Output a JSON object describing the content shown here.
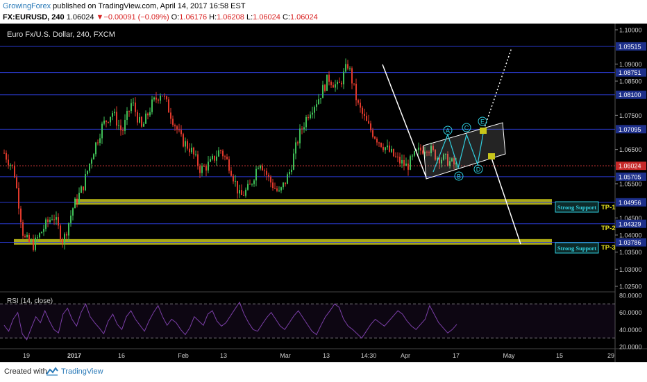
{
  "header": {
    "author": "GrowingForex",
    "published_text": "published on TradingView.com, April 14, 2017 16:58 EST",
    "symbol": "FX:EURUSD, 240",
    "last": "1.06024",
    "change": "−0.00091 (−0.09%)",
    "o_label": "O:",
    "o": "1.06176",
    "h_label": "H:",
    "h": "1.06208",
    "l_label": "L:",
    "l": "1.06024",
    "c_label": "C:",
    "c": "1.06024"
  },
  "chart_title": "Euro Fx/U.S. Dollar, 240, FXCM",
  "footer": {
    "created_with": "Created with",
    "brand": "TradingView"
  },
  "colors": {
    "background": "#000000",
    "candle_up": "#3fbf57",
    "candle_down": "#e0392b",
    "level_line": "#2b3bd4",
    "support_zone": "#c8c61a",
    "last_price_line": "#d83a3a",
    "rsi_line": "#7b3fa8",
    "wave_cyan": "#30d0e0",
    "tp_label": "#e6e020",
    "price_label_bg": "#1d2f8a"
  },
  "chart_data": [
    {
      "type": "candlestick",
      "title": "Euro Fx/U.S. Dollar, 240, FXCM",
      "ylim": [
        1.025,
        1.101
      ],
      "y_ticks": [
        "1.10000",
        "1.09000",
        "1.08500",
        "1.07500",
        "1.06500",
        "1.05500",
        "1.04500",
        "1.04000",
        "1.03500",
        "1.03000",
        "1.02500"
      ],
      "x_ticks": [
        "19",
        "2017",
        "16",
        "Feb",
        "13",
        "Mar",
        "13",
        "14:30",
        "Apr",
        "17",
        "May",
        "15",
        "29"
      ],
      "price_path": [
        1.064,
        1.059,
        1.039,
        1.037,
        1.042,
        1.046,
        1.038,
        1.048,
        1.054,
        1.064,
        1.072,
        1.076,
        1.07,
        1.079,
        1.071,
        1.078,
        1.082,
        1.075,
        1.068,
        1.065,
        1.059,
        1.061,
        1.065,
        1.06,
        1.051,
        1.054,
        1.062,
        1.056,
        1.052,
        1.058,
        1.069,
        1.076,
        1.08,
        1.086,
        1.083,
        1.09,
        1.078,
        1.072,
        1.068,
        1.065,
        1.062,
        1.06,
        1.064,
        1.066,
        1.063,
        1.062,
        1.0602
      ],
      "horizontal_levels": [
        {
          "label": "1.09515",
          "value": 1.09515
        },
        {
          "label": "1.08751",
          "value": 1.08751
        },
        {
          "label": "1.08100",
          "value": 1.081
        },
        {
          "label": "1.07095",
          "value": 1.07095
        },
        {
          "label": "1.05705",
          "value": 1.05705
        },
        {
          "label": "1.04956",
          "value": 1.04956
        },
        {
          "label": "1.04329",
          "value": 1.04329
        },
        {
          "label": "1.03786",
          "value": 1.03786
        }
      ],
      "last_price": {
        "label": "1.06024",
        "value": 1.06024
      },
      "support_zones": [
        {
          "value": 1.0497,
          "label": "Strong Support",
          "tp": "TP-1"
        },
        {
          "value": 1.038,
          "label": "Strong Support",
          "tp": "TP-3"
        }
      ],
      "tp_labels": [
        "TP-1",
        "TP-2",
        "TP-3"
      ],
      "wave_labels": [
        "A",
        "B",
        "C",
        "D",
        "E"
      ]
    },
    {
      "type": "line",
      "title": "RSI (14, close)",
      "ylim": [
        20,
        80
      ],
      "y_ticks": [
        "80.0000",
        "60.0000",
        "40.0000",
        "20.0000"
      ],
      "bands": [
        70,
        30
      ],
      "values": [
        45,
        38,
        52,
        60,
        35,
        28,
        42,
        55,
        48,
        62,
        50,
        40,
        36,
        58,
        65,
        52,
        44,
        60,
        70,
        55,
        48,
        42,
        35,
        50,
        58,
        46,
        40,
        55,
        62,
        52,
        45,
        38,
        50,
        60,
        68,
        55,
        45,
        52,
        48,
        40,
        34,
        42,
        55,
        50,
        45,
        58,
        62,
        50,
        44,
        48,
        56,
        64,
        72,
        58,
        48,
        40,
        38,
        46,
        54,
        60,
        52,
        44,
        40,
        48,
        56,
        62,
        54,
        46,
        38,
        34,
        45,
        55,
        62,
        70,
        66,
        52,
        44,
        40,
        35,
        30,
        38,
        46,
        52,
        48,
        44,
        50,
        56,
        62,
        58,
        50,
        44,
        40,
        46,
        52,
        68,
        58,
        48,
        42,
        36,
        40,
        46
      ]
    }
  ]
}
